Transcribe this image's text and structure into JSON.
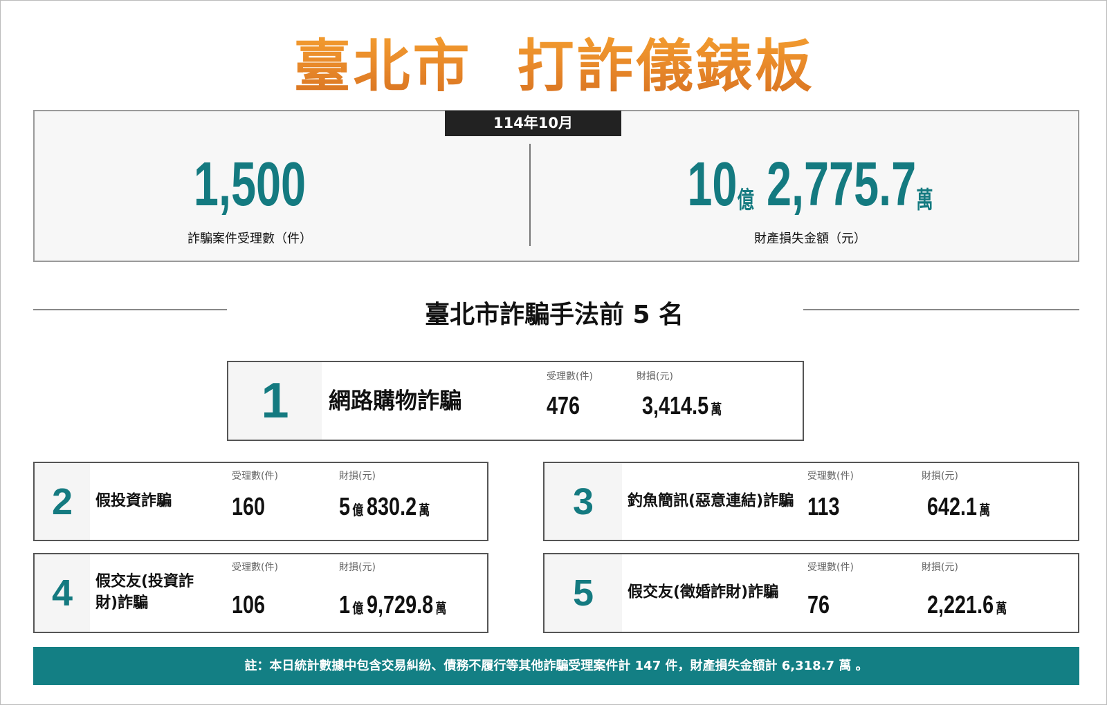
{
  "title": "臺北市  打詐儀錶板",
  "period": "114年10月",
  "summary": {
    "cases": {
      "value": "1,500",
      "label": "詐騙案件受理數（件）"
    },
    "loss": {
      "yi": "10",
      "yi_unit": "億",
      "wan": "2,775.7",
      "wan_unit": "萬",
      "label": "財產損失金額（元）"
    }
  },
  "section_title": "臺北市詐騙手法前 5 名",
  "col_labels": {
    "cases": "受理數(件)",
    "loss": "財損(元)"
  },
  "top5": [
    {
      "rank": "1",
      "name": "網路購物詐騙",
      "cases": "476",
      "loss_yi": "",
      "loss_yi_unit": "",
      "loss_wan": "3,414.5",
      "loss_wan_unit": "萬"
    },
    {
      "rank": "2",
      "name": "假投資詐騙",
      "cases": "160",
      "loss_yi": "5",
      "loss_yi_unit": "億",
      "loss_wan": "830.2",
      "loss_wan_unit": "萬"
    },
    {
      "rank": "3",
      "name": "釣魚簡訊(惡意連結)詐騙",
      "cases": "113",
      "loss_yi": "",
      "loss_yi_unit": "",
      "loss_wan": "642.1",
      "loss_wan_unit": "萬"
    },
    {
      "rank": "4",
      "name": "假交友(投資詐財)詐騙",
      "cases": "106",
      "loss_yi": "1",
      "loss_yi_unit": "億",
      "loss_wan": "9,729.8",
      "loss_wan_unit": "萬"
    },
    {
      "rank": "5",
      "name": "假交友(徵婚詐財)詐騙",
      "cases": "76",
      "loss_yi": "",
      "loss_yi_unit": "",
      "loss_wan": "2,221.6",
      "loss_wan_unit": "萬"
    }
  ],
  "footer_note": "註：本日統計數據中包含交易糾紛、債務不履行等其他詐騙受理案件計 147 件，財產損失金額計 6,318.7 萬 。",
  "colors": {
    "teal": "#147a80",
    "orange": "#e8892a",
    "dark": "#222222"
  }
}
